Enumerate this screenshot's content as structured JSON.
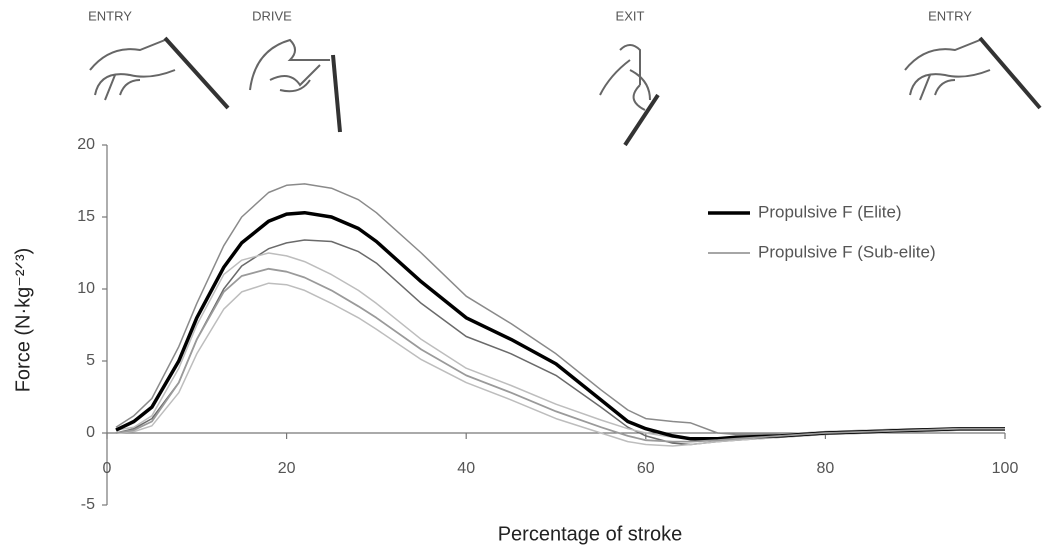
{
  "chart_data": {
    "type": "line",
    "phase_labels": [
      "ENTRY",
      "DRIVE",
      "EXIT",
      "ENTRY"
    ],
    "x_label": "Percentage of stroke",
    "y_label": "Force (N·kg⁻²ᐟ³)",
    "xlim": [
      0,
      100
    ],
    "xticks": [
      0,
      20,
      40,
      60,
      80,
      100
    ],
    "ylim": [
      -5,
      20
    ],
    "yticks": [
      -5,
      0,
      5,
      10,
      15,
      20
    ],
    "x": [
      1,
      3,
      5,
      8,
      10,
      13,
      15,
      18,
      20,
      22,
      25,
      28,
      30,
      35,
      40,
      45,
      50,
      55,
      58,
      60,
      63,
      65,
      68,
      70,
      75,
      80,
      85,
      90,
      95,
      100
    ],
    "series": [
      {
        "name": "Propulsive F (Elite)",
        "color": "#000000",
        "values": [
          0.2,
          0.8,
          1.8,
          5,
          8,
          11.5,
          13.2,
          14.7,
          15.2,
          15.3,
          15,
          14.2,
          13.3,
          10.5,
          8,
          6.5,
          4.8,
          2.3,
          0.8,
          0.3,
          -0.2,
          -0.4,
          -0.4,
          -0.3,
          -0.2,
          0,
          0.1,
          0.2,
          0.3,
          0.3
        ]
      },
      {
        "name": "Propulsive F (Sub-elite)",
        "color": "#9a9a9a",
        "values": [
          0,
          0.2,
          0.8,
          3.5,
          6.5,
          9.8,
          10.9,
          11.4,
          11.2,
          10.8,
          9.9,
          8.8,
          8,
          5.8,
          4,
          2.8,
          1.5,
          0.4,
          -0.2,
          -0.5,
          -0.6,
          -0.6,
          -0.5,
          -0.4,
          -0.2,
          0,
          0.1,
          0.2,
          0.3,
          0.3
        ]
      }
    ],
    "bands": [
      {
        "color": "#8a8a8a",
        "values": [
          0.4,
          1.2,
          2.4,
          6,
          9,
          13,
          15,
          16.7,
          17.2,
          17.3,
          17,
          16.2,
          15.3,
          12.5,
          9.5,
          7.6,
          5.5,
          3,
          1.6,
          1,
          0.8,
          0.7,
          0,
          -0.1,
          -0.1,
          0.1,
          0.2,
          0.3,
          0.3,
          0.3
        ]
      },
      {
        "color": "#6a6a6a",
        "values": [
          0,
          0.3,
          1,
          3.5,
          6.5,
          10,
          11.6,
          12.8,
          13.2,
          13.4,
          13.3,
          12.6,
          11.8,
          9,
          6.7,
          5.5,
          4,
          1.8,
          0.4,
          -0.2,
          -0.7,
          -0.8,
          -0.6,
          -0.5,
          -0.3,
          -0.1,
          0,
          0.1,
          0.2,
          0.2
        ]
      },
      {
        "color": "#bdbdbd",
        "values": [
          0.2,
          0.4,
          1.2,
          4.5,
          7.5,
          11,
          12,
          12.5,
          12.3,
          11.9,
          11,
          9.9,
          9,
          6.5,
          4.5,
          3.3,
          2,
          0.9,
          0.3,
          0,
          -0.3,
          -0.4,
          -0.4,
          -0.3,
          -0.1,
          0.1,
          0.2,
          0.3,
          0.3,
          0.3
        ]
      },
      {
        "color": "#bdbdbd",
        "values": [
          0,
          0.1,
          0.5,
          2.8,
          5.5,
          8.6,
          9.8,
          10.4,
          10.3,
          9.9,
          9,
          8,
          7.2,
          5.1,
          3.5,
          2.3,
          1,
          0,
          -0.6,
          -0.8,
          -0.9,
          -0.8,
          -0.6,
          -0.5,
          -0.3,
          -0.1,
          0,
          0.1,
          0.2,
          0.2
        ]
      }
    ]
  }
}
